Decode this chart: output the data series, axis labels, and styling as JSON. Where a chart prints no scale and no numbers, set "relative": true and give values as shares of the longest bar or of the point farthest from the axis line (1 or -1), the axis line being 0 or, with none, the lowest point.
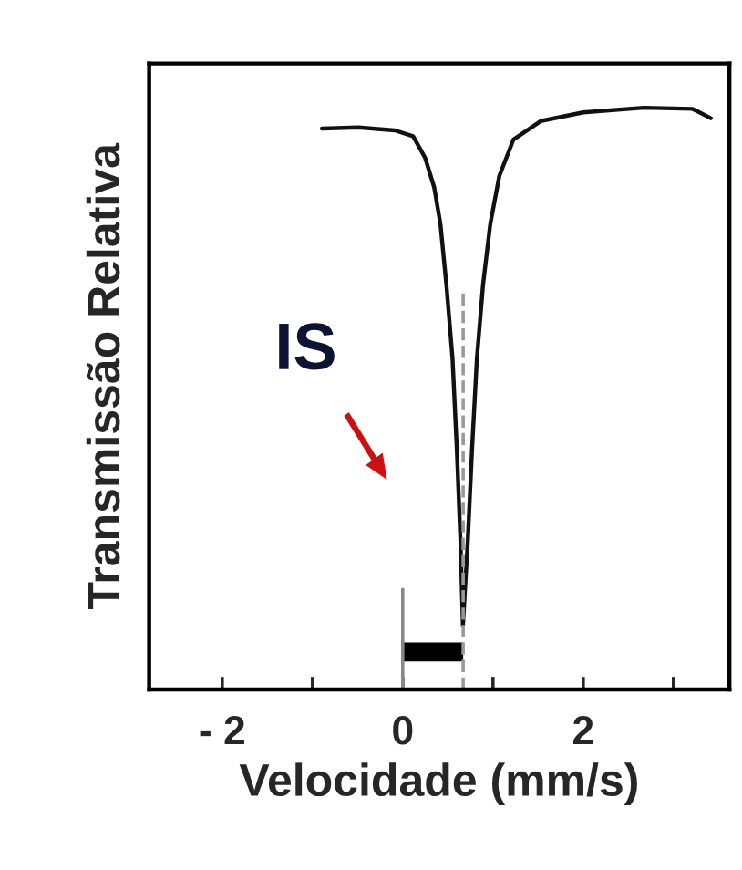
{
  "chart_data": {
    "type": "line",
    "relative": true,
    "xlabel": "Velocidade (mm/s)",
    "ylabel": "Transmissão Relativa",
    "xlim": [
      -2.81,
      3.62
    ],
    "xticks": [
      {
        "value": -2,
        "label": "- 2"
      },
      {
        "value": -1,
        "label": null
      },
      0,
      {
        "value": 1,
        "label": null
      },
      2,
      {
        "value": 3,
        "label": null
      }
    ],
    "tick_labels": "x",
    "grid": false,
    "marker": "none",
    "line_style": "solid",
    "series": [
      {
        "color": "#111111",
        "x": [
          -0.895,
          -0.491,
          -0.087,
          0.115,
          0.248,
          0.349,
          0.418,
          0.485,
          0.552,
          0.6,
          0.64,
          0.667,
          0.721,
          0.768,
          0.822,
          0.889,
          0.97,
          1.071,
          1.226,
          1.529,
          2.0,
          2.673,
          3.212,
          3.414
        ],
        "values": [
          0.964,
          0.966,
          0.961,
          0.951,
          0.914,
          0.863,
          0.8,
          0.694,
          0.569,
          0.412,
          0.255,
          0.11,
          0.255,
          0.412,
          0.569,
          0.694,
          0.8,
          0.883,
          0.945,
          0.977,
          0.992,
          1.0,
          0.998,
          0.982
        ]
      }
    ],
    "ref_lines": [
      {
        "axis": "x",
        "value": 0,
        "color": "#888888",
        "line_style": "solid"
      },
      {
        "axis": "x",
        "value": 0.67,
        "color": "#999999",
        "line_style": "dashed"
      }
    ],
    "annotations": [
      "IS"
    ]
  }
}
